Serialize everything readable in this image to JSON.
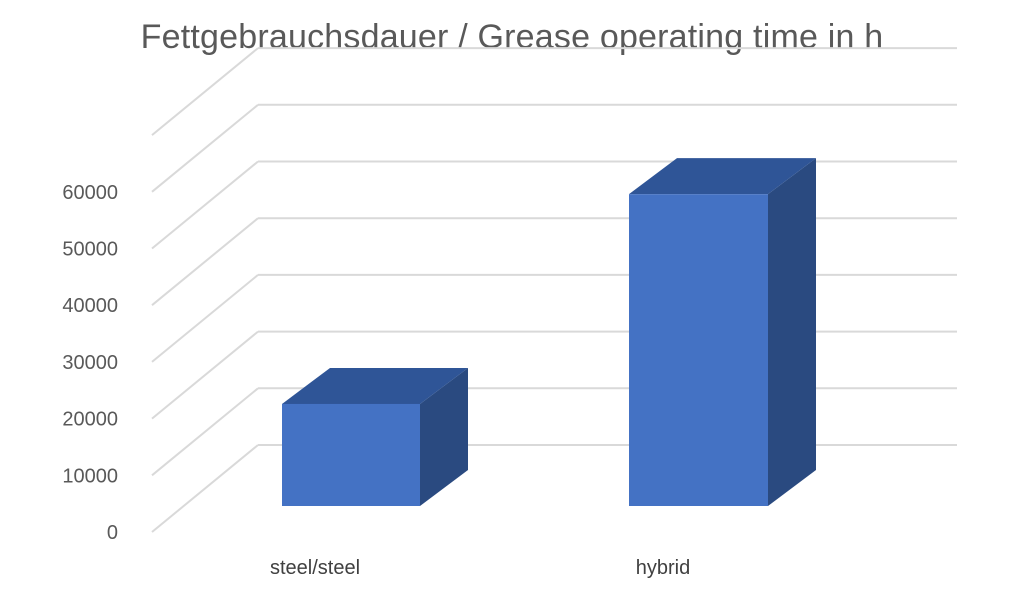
{
  "chart_data": {
    "type": "bar",
    "title": "Fettgebrauchsdauer / Grease operating time in h",
    "categories": [
      "steel/steel",
      "hybrid"
    ],
    "values": [
      18000,
      55000
    ],
    "ylim": [
      0,
      70000
    ],
    "yticks": [
      0,
      10000,
      20000,
      30000,
      40000,
      50000,
      60000
    ],
    "xlabel": "",
    "ylabel": "",
    "grid": true,
    "legend": "none",
    "style": "3d-column",
    "colors": {
      "front": "#4472C4",
      "top": "#2F5597",
      "side": "#2A4A80",
      "grid": "#D9D9D9",
      "text": "#595959"
    }
  }
}
